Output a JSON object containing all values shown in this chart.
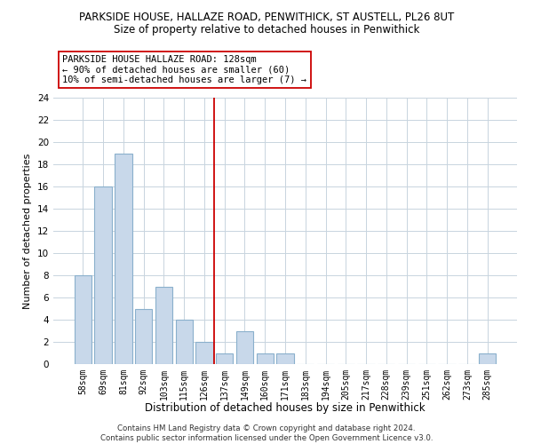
{
  "title_line1": "PARKSIDE HOUSE, HALLAZE ROAD, PENWITHICK, ST AUSTELL, PL26 8UT",
  "title_line2": "Size of property relative to detached houses in Penwithick",
  "xlabel": "Distribution of detached houses by size in Penwithick",
  "ylabel": "Number of detached properties",
  "bar_labels": [
    "58sqm",
    "69sqm",
    "81sqm",
    "92sqm",
    "103sqm",
    "115sqm",
    "126sqm",
    "137sqm",
    "149sqm",
    "160sqm",
    "171sqm",
    "183sqm",
    "194sqm",
    "205sqm",
    "217sqm",
    "228sqm",
    "239sqm",
    "251sqm",
    "262sqm",
    "273sqm",
    "285sqm"
  ],
  "bar_values": [
    8,
    16,
    19,
    5,
    7,
    4,
    2,
    1,
    3,
    1,
    1,
    0,
    0,
    0,
    0,
    0,
    0,
    0,
    0,
    0,
    1
  ],
  "bar_color": "#c8d8ea",
  "bar_edge_color": "#8ab0cc",
  "reference_line_color": "#cc0000",
  "annotation_line1": "PARKSIDE HOUSE HALLAZE ROAD: 128sqm",
  "annotation_line2": "← 90% of detached houses are smaller (60)",
  "annotation_line3": "10% of semi-detached houses are larger (7) →",
  "ylim": [
    0,
    24
  ],
  "yticks": [
    0,
    2,
    4,
    6,
    8,
    10,
    12,
    14,
    16,
    18,
    20,
    22,
    24
  ],
  "footer_line1": "Contains HM Land Registry data © Crown copyright and database right 2024.",
  "footer_line2": "Contains public sector information licensed under the Open Government Licence v3.0.",
  "background_color": "#ffffff",
  "grid_color": "#c8d4de"
}
